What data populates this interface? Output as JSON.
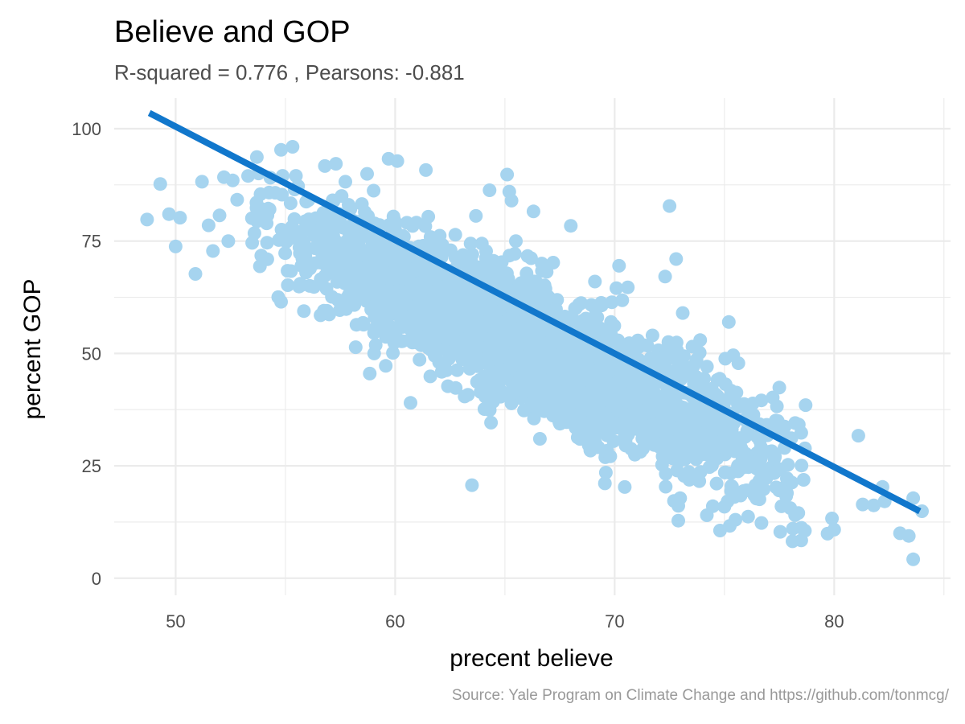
{
  "chart_data": {
    "type": "scatter",
    "title": "Believe and GOP",
    "subtitle": "R-squared =  0.776 , Pearsons: -0.881",
    "xlabel": "precent believe",
    "ylabel": "percent GOP",
    "caption": "Source: Yale Program on Climate Change and https://github.com/tonmcg/",
    "xlim": [
      47.2,
      85.3
    ],
    "ylim": [
      -3.8,
      106.8
    ],
    "x_ticks": [
      50,
      60,
      70,
      80
    ],
    "x_tick_labels": [
      "50",
      "60",
      "70",
      "80"
    ],
    "y_ticks": [
      0,
      25,
      50,
      75,
      100
    ],
    "y_tick_labels": [
      "0",
      "25",
      "50",
      "75",
      "100"
    ],
    "grid": true,
    "legend": "none",
    "point_color": "#a6d4ef",
    "line_color": "#1177cc",
    "cloud_model": {
      "x_range": [
        53,
        79
      ],
      "y_at_x_min": 82,
      "y_at_x_max": 22,
      "spread": 7,
      "count": 2600
    },
    "trend_line": {
      "x": [
        48.8,
        83.9
      ],
      "y": [
        103.5,
        14.9
      ]
    },
    "points": [
      {
        "x": 48.7,
        "y": 79.8
      },
      {
        "x": 49.3,
        "y": 87.7
      },
      {
        "x": 49.7,
        "y": 81.0
      },
      {
        "x": 50.0,
        "y": 73.8
      },
      {
        "x": 50.2,
        "y": 80.2
      },
      {
        "x": 50.9,
        "y": 67.7
      },
      {
        "x": 51.2,
        "y": 88.2
      },
      {
        "x": 51.5,
        "y": 78.5
      },
      {
        "x": 51.7,
        "y": 72.8
      },
      {
        "x": 52.0,
        "y": 80.7
      },
      {
        "x": 52.2,
        "y": 89.2
      },
      {
        "x": 52.4,
        "y": 75.0
      },
      {
        "x": 52.6,
        "y": 88.5
      },
      {
        "x": 52.8,
        "y": 84.2
      },
      {
        "x": 53.3,
        "y": 89.5
      },
      {
        "x": 53.7,
        "y": 93.7
      },
      {
        "x": 54.8,
        "y": 95.3
      },
      {
        "x": 54.8,
        "y": 61.5
      },
      {
        "x": 56.3,
        "y": 64.8
      },
      {
        "x": 56.6,
        "y": 58.5
      },
      {
        "x": 56.8,
        "y": 91.7
      },
      {
        "x": 57.3,
        "y": 92.2
      },
      {
        "x": 58.2,
        "y": 51.4
      },
      {
        "x": 59.7,
        "y": 93.3
      },
      {
        "x": 60.1,
        "y": 92.8
      },
      {
        "x": 60.7,
        "y": 39.0
      },
      {
        "x": 61.4,
        "y": 90.8
      },
      {
        "x": 61.6,
        "y": 44.9
      },
      {
        "x": 61.8,
        "y": 49.5
      },
      {
        "x": 63.5,
        "y": 20.7
      },
      {
        "x": 63.4,
        "y": 46.6
      },
      {
        "x": 64.3,
        "y": 86.3
      },
      {
        "x": 65.1,
        "y": 89.8
      },
      {
        "x": 65.2,
        "y": 86.0
      },
      {
        "x": 65.3,
        "y": 84.0
      },
      {
        "x": 65.3,
        "y": 41.0
      },
      {
        "x": 65.5,
        "y": 75.0
      },
      {
        "x": 66.3,
        "y": 81.6
      },
      {
        "x": 66.6,
        "y": 45.0
      },
      {
        "x": 67.2,
        "y": 70.2
      },
      {
        "x": 68.0,
        "y": 78.4
      },
      {
        "x": 68.9,
        "y": 28.4
      },
      {
        "x": 69.1,
        "y": 66.0
      },
      {
        "x": 69.3,
        "y": 33.0
      },
      {
        "x": 69.6,
        "y": 23.5
      },
      {
        "x": 69.8,
        "y": 27.1
      },
      {
        "x": 70.2,
        "y": 69.5
      },
      {
        "x": 70.5,
        "y": 29.5
      },
      {
        "x": 70.6,
        "y": 64.7
      },
      {
        "x": 72.3,
        "y": 67.1
      },
      {
        "x": 72.5,
        "y": 82.8
      },
      {
        "x": 72.7,
        "y": 17.2
      },
      {
        "x": 72.8,
        "y": 71.0
      },
      {
        "x": 72.9,
        "y": 12.8
      },
      {
        "x": 72.9,
        "y": 16.1
      },
      {
        "x": 73.1,
        "y": 59.0
      },
      {
        "x": 73.4,
        "y": 21.9
      },
      {
        "x": 74.2,
        "y": 14.0
      },
      {
        "x": 74.8,
        "y": 10.6
      },
      {
        "x": 75.0,
        "y": 15.9
      },
      {
        "x": 75.2,
        "y": 57.0
      },
      {
        "x": 75.4,
        "y": 49.6
      },
      {
        "x": 75.5,
        "y": 13.0
      },
      {
        "x": 77.2,
        "y": 40.2
      },
      {
        "x": 77.5,
        "y": 42.4
      },
      {
        "x": 77.6,
        "y": 16.0
      },
      {
        "x": 77.8,
        "y": 19.1
      },
      {
        "x": 78.0,
        "y": 15.6
      },
      {
        "x": 78.1,
        "y": 8.2
      },
      {
        "x": 78.5,
        "y": 8.4
      },
      {
        "x": 78.7,
        "y": 38.5
      },
      {
        "x": 79.7,
        "y": 9.9
      },
      {
        "x": 79.9,
        "y": 13.3
      },
      {
        "x": 80.0,
        "y": 10.8
      },
      {
        "x": 81.1,
        "y": 31.7
      },
      {
        "x": 81.3,
        "y": 16.4
      },
      {
        "x": 81.8,
        "y": 16.2
      },
      {
        "x": 82.2,
        "y": 20.3
      },
      {
        "x": 82.3,
        "y": 17.1
      },
      {
        "x": 83.0,
        "y": 10.0
      },
      {
        "x": 83.4,
        "y": 9.4
      },
      {
        "x": 83.6,
        "y": 4.2
      },
      {
        "x": 83.6,
        "y": 17.8
      },
      {
        "x": 84.0,
        "y": 14.9
      }
    ]
  }
}
